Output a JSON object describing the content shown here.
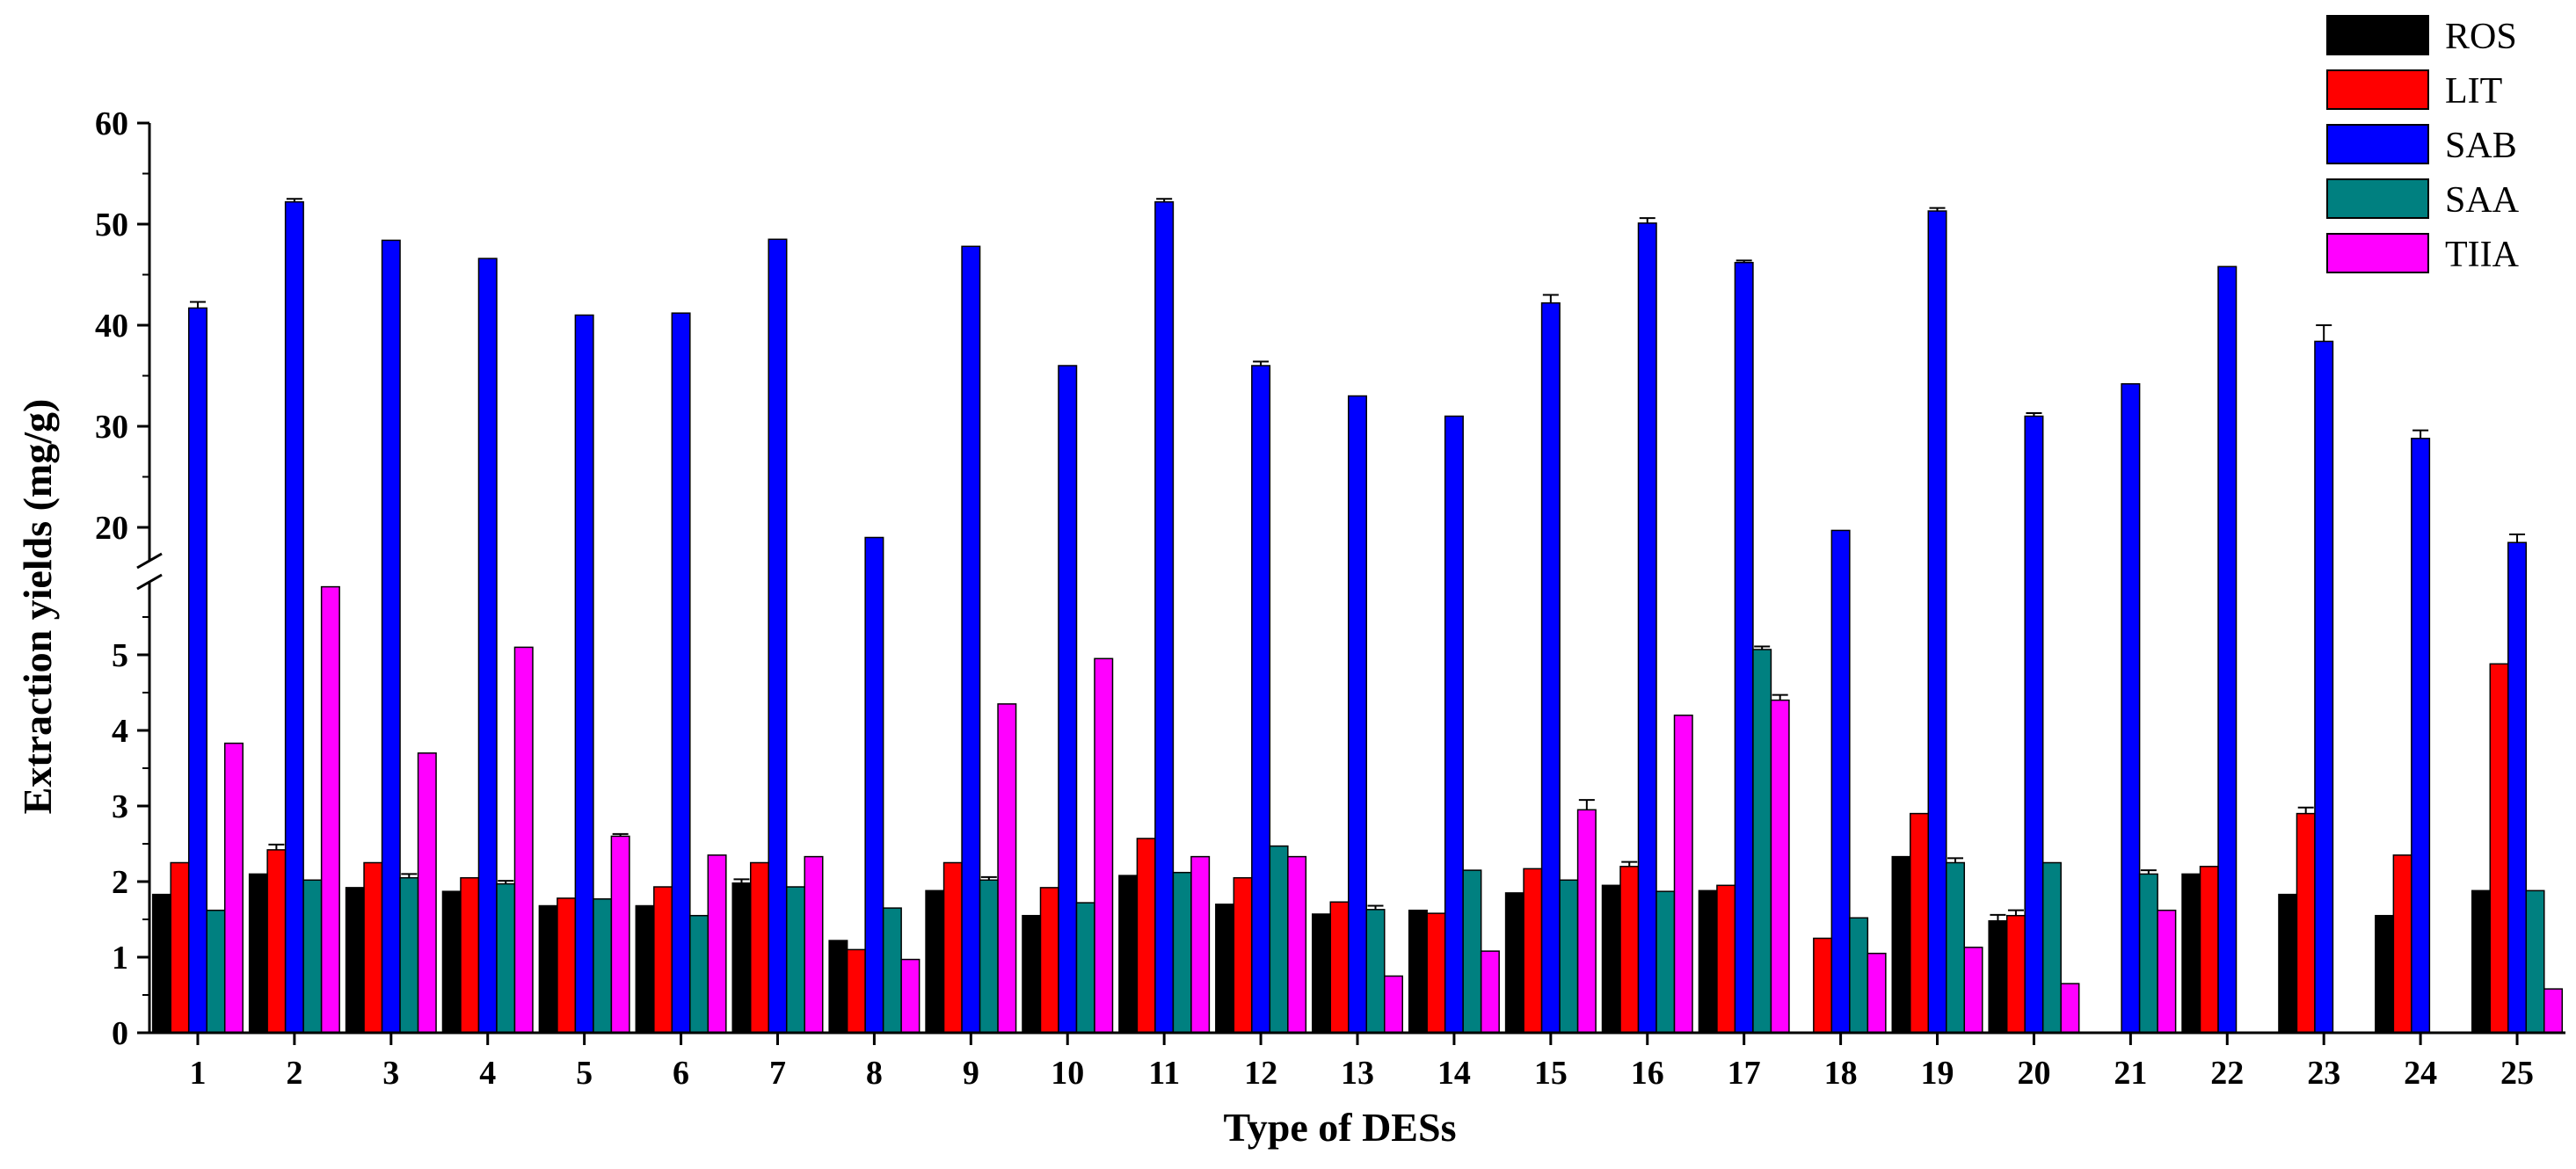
{
  "chart_data": {
    "type": "bar",
    "xlabel": "Type of DESs",
    "ylabel": "Extraction yields (mg/g)",
    "categories": [
      "1",
      "2",
      "3",
      "4",
      "5",
      "6",
      "7",
      "8",
      "9",
      "10",
      "11",
      "12",
      "13",
      "14",
      "15",
      "16",
      "17",
      "18",
      "19",
      "20",
      "21",
      "22",
      "23",
      "24",
      "25"
    ],
    "axis_break": true,
    "lower_axis": {
      "ylim": [
        0,
        6
      ],
      "ticks": [
        "0",
        "1",
        "2",
        "3",
        "4",
        "5"
      ]
    },
    "upper_axis": {
      "ylim": [
        15,
        60
      ],
      "ticks": [
        "20",
        "30",
        "40",
        "50",
        "60"
      ]
    },
    "colors": [
      "#000000",
      "#ff0000",
      "#0000ff",
      "#008080",
      "#ff00ff"
    ],
    "legend_position": "top-right",
    "series": [
      {
        "name": "ROS",
        "values": [
          1.83,
          2.1,
          1.92,
          1.87,
          1.68,
          1.68,
          1.98,
          1.22,
          1.88,
          1.55,
          2.08,
          1.7,
          1.57,
          1.62,
          1.85,
          1.95,
          1.88,
          0,
          2.33,
          1.48,
          0,
          2.1,
          1.83,
          1.55,
          1.88
        ],
        "errors": [
          0,
          0,
          0,
          0,
          0,
          0,
          0.05,
          0,
          0,
          0,
          0,
          0,
          0,
          0,
          0,
          0,
          0,
          0,
          0,
          0.08,
          0,
          0,
          0,
          0,
          0
        ]
      },
      {
        "name": "LIT",
        "values": [
          2.25,
          2.42,
          2.25,
          2.05,
          1.78,
          1.93,
          2.25,
          1.1,
          2.25,
          1.92,
          2.57,
          2.05,
          1.73,
          1.58,
          2.17,
          2.2,
          1.95,
          1.25,
          2.9,
          1.55,
          0,
          2.2,
          2.9,
          2.35,
          4.88
        ],
        "errors": [
          0,
          0.07,
          0,
          0,
          0,
          0,
          0,
          0,
          0,
          0,
          0,
          0,
          0,
          0,
          0,
          0.06,
          0,
          0,
          0,
          0.07,
          0,
          0,
          0.08,
          0,
          0
        ]
      },
      {
        "name": "SAB",
        "values": [
          41.7,
          52.2,
          48.4,
          46.6,
          41.0,
          41.2,
          48.5,
          19.0,
          47.8,
          36.0,
          52.2,
          36.0,
          33.0,
          31.0,
          42.2,
          50.1,
          46.2,
          19.7,
          51.3,
          31.0,
          34.2,
          45.8,
          38.4,
          28.8,
          18.5
        ],
        "errors": [
          0.6,
          0.3,
          0,
          0,
          0,
          0,
          0,
          0,
          0,
          0,
          0.3,
          0.4,
          0,
          0,
          0.8,
          0.5,
          0.2,
          0,
          0.3,
          0.3,
          0,
          0,
          1.6,
          0.8,
          0.8
        ]
      },
      {
        "name": "SAA",
        "values": [
          1.62,
          2.02,
          2.05,
          1.97,
          1.77,
          1.55,
          1.93,
          1.65,
          2.02,
          1.72,
          2.12,
          2.47,
          1.63,
          2.15,
          2.02,
          1.87,
          5.07,
          1.52,
          2.25,
          2.25,
          2.1,
          0,
          0,
          0,
          1.88
        ],
        "errors": [
          0,
          0,
          0.05,
          0.04,
          0,
          0,
          0,
          0,
          0.04,
          0,
          0,
          0,
          0.05,
          0,
          0,
          0,
          0.04,
          0,
          0.06,
          0,
          0.05,
          0,
          0,
          0,
          0
        ]
      },
      {
        "name": "TIIA",
        "values": [
          3.83,
          5.9,
          3.7,
          5.1,
          2.6,
          2.35,
          2.33,
          0.97,
          4.35,
          4.95,
          2.33,
          2.33,
          0.75,
          1.08,
          2.95,
          4.2,
          4.4,
          1.05,
          1.13,
          0.65,
          1.62,
          0,
          0,
          0,
          0.58
        ],
        "errors": [
          0,
          0,
          0,
          0,
          0.03,
          0,
          0,
          0,
          0,
          0,
          0,
          0,
          0,
          0,
          0.13,
          0,
          0.07,
          0,
          0,
          0,
          0,
          0,
          0,
          0,
          0
        ]
      }
    ]
  }
}
